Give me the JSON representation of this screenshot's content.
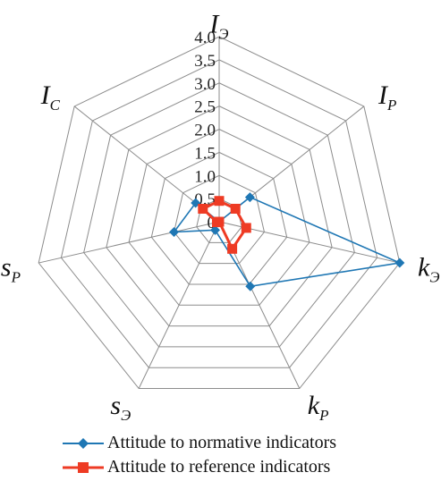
{
  "chart_data": {
    "type": "radar",
    "axes": [
      {
        "name": "I",
        "sub": "Э"
      },
      {
        "name": "I",
        "sub": "P"
      },
      {
        "name": "k",
        "sub": "Э"
      },
      {
        "name": "k",
        "sub": "P"
      },
      {
        "name": "s",
        "sub": "Э"
      },
      {
        "name": "s",
        "sub": "P"
      },
      {
        "name": "I",
        "sub": "C"
      }
    ],
    "rlim": [
      0,
      4.0
    ],
    "ticks": [
      "0",
      "0.5",
      "1.0",
      "1.5",
      "2.0",
      "2.5",
      "3.0",
      "3.5",
      "4.0"
    ],
    "tick_values": [
      0,
      0.5,
      1.0,
      1.5,
      2.0,
      2.5,
      3.0,
      3.5,
      4.0
    ],
    "grid": true,
    "legend_position": "bottom",
    "series": [
      {
        "name": "Attitude to normative indicators",
        "values": [
          0.0,
          0.85,
          4.0,
          1.55,
          0.2,
          1.0,
          0.65
        ],
        "color": "#1f77b4",
        "marker": "diamond"
      },
      {
        "name": "Attitude to reference indicators",
        "values": [
          0.45,
          0.45,
          0.6,
          0.65,
          0.0,
          0.05,
          0.45
        ],
        "color": "#ee3b24",
        "marker": "square"
      }
    ]
  }
}
